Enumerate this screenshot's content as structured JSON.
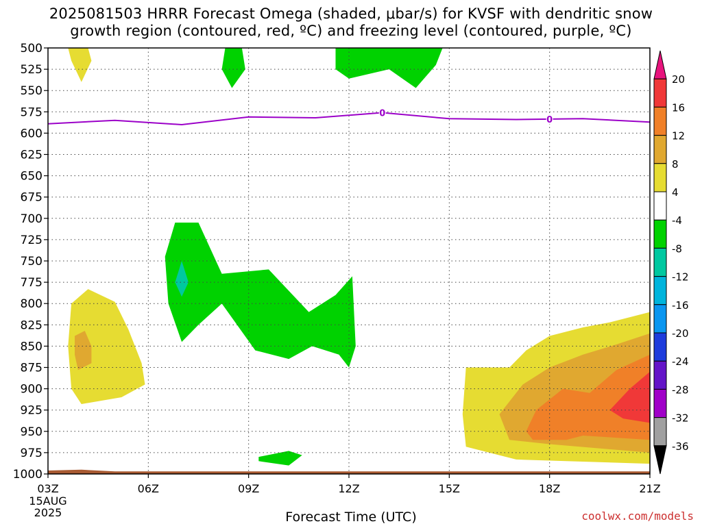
{
  "chart_data": {
    "type": "heatmap",
    "title_line1": "2025081503 HRRR Forecast Omega (shaded, μbar/s) for KVSF with dendritic snow",
    "title_line2": "growth region (contoured, red, ºC) and freezing level (contoured, purple, ºC)",
    "xlabel": "Forecast Time (UTC)",
    "x_ticks": [
      "03Z",
      "06Z",
      "09Z",
      "12Z",
      "15Z",
      "18Z",
      "21Z"
    ],
    "x_tick_hours": [
      3,
      6,
      9,
      12,
      15,
      18,
      21
    ],
    "x_date_label": [
      "15AUG",
      "2025"
    ],
    "xlim": [
      3,
      21
    ],
    "y_ticks": [
      500,
      525,
      550,
      575,
      600,
      625,
      650,
      675,
      700,
      725,
      750,
      775,
      800,
      825,
      850,
      875,
      900,
      925,
      950,
      975,
      1000
    ],
    "ylim": [
      1000,
      500
    ],
    "grid": true,
    "colorbar": {
      "labels": [
        "20",
        "16",
        "12",
        "8",
        "4",
        "-4",
        "-8",
        "-12",
        "-16",
        "-20",
        "-24",
        "-28",
        "-32",
        "-36"
      ],
      "colors": [
        "#e8147d",
        "#f03838",
        "#f08028",
        "#e0a830",
        "#e6dc32",
        "#ffffff",
        "#00d200",
        "#00c8a0",
        "#00b4dc",
        "#0a96f0",
        "#1e3cdc",
        "#6414c8",
        "#a000c8",
        "#a0a0a0",
        "#000000"
      ]
    },
    "freezing_level": {
      "color": "#9b00c8",
      "label": "0",
      "label_hours": [
        13,
        18
      ],
      "hours": [
        3,
        5,
        7,
        9,
        11,
        13,
        15,
        17,
        19,
        21
      ],
      "pressure": [
        589,
        585,
        590,
        581,
        582,
        576,
        583,
        584,
        583,
        587
      ]
    },
    "omega_regions": [
      {
        "color": "#e6dc32",
        "points": [
          [
            3.6,
            500
          ],
          [
            4.2,
            500
          ],
          [
            4.3,
            515
          ],
          [
            4.0,
            540
          ],
          [
            3.7,
            515
          ]
        ]
      },
      {
        "color": "#00d200",
        "points": [
          [
            8.3,
            500
          ],
          [
            8.8,
            500
          ],
          [
            8.9,
            525
          ],
          [
            8.5,
            547
          ],
          [
            8.2,
            525
          ]
        ]
      },
      {
        "color": "#00d200",
        "points": [
          [
            11.6,
            500
          ],
          [
            14.8,
            500
          ],
          [
            14.6,
            520
          ],
          [
            14.0,
            547
          ],
          [
            13.2,
            525
          ],
          [
            12.0,
            536
          ],
          [
            11.6,
            525
          ]
        ]
      },
      {
        "color": "#00d200",
        "points": [
          [
            6.8,
            705
          ],
          [
            7.5,
            705
          ],
          [
            8.2,
            765
          ],
          [
            9.6,
            760
          ],
          [
            10.8,
            810
          ],
          [
            11.6,
            790
          ],
          [
            12.1,
            768
          ],
          [
            12.2,
            850
          ],
          [
            12.0,
            875
          ],
          [
            11.7,
            860
          ],
          [
            10.9,
            850
          ],
          [
            10.2,
            865
          ],
          [
            9.2,
            855
          ],
          [
            8.2,
            800
          ],
          [
            7.5,
            825
          ],
          [
            7.0,
            845
          ],
          [
            6.6,
            800
          ],
          [
            6.5,
            745
          ]
        ]
      },
      {
        "color": "#00c8a0",
        "points": [
          [
            7.0,
            750
          ],
          [
            7.2,
            775
          ],
          [
            7.0,
            792
          ],
          [
            6.8,
            775
          ]
        ]
      },
      {
        "color": "#e6dc32",
        "points": [
          [
            3.7,
            800
          ],
          [
            4.2,
            783
          ],
          [
            5.0,
            798
          ],
          [
            5.4,
            830
          ],
          [
            5.8,
            870
          ],
          [
            5.9,
            895
          ],
          [
            5.2,
            910
          ],
          [
            4.0,
            918
          ],
          [
            3.7,
            900
          ],
          [
            3.6,
            850
          ]
        ]
      },
      {
        "color": "#e0a830",
        "points": [
          [
            3.8,
            838
          ],
          [
            4.1,
            832
          ],
          [
            4.3,
            850
          ],
          [
            4.3,
            870
          ],
          [
            3.9,
            878
          ],
          [
            3.8,
            860
          ]
        ]
      },
      {
        "color": "#00d200",
        "points": [
          [
            9.3,
            980
          ],
          [
            10.2,
            973
          ],
          [
            10.6,
            978
          ],
          [
            10.2,
            990
          ],
          [
            9.3,
            985
          ]
        ]
      },
      {
        "color": "#e6dc32",
        "points": [
          [
            15.5,
            875
          ],
          [
            16.8,
            875
          ],
          [
            17.3,
            855
          ],
          [
            18.0,
            838
          ],
          [
            19.0,
            828
          ],
          [
            19.8,
            822
          ],
          [
            21,
            810
          ],
          [
            21,
            988
          ],
          [
            17.0,
            983
          ],
          [
            15.5,
            968
          ],
          [
            15.4,
            930
          ]
        ]
      },
      {
        "color": "#e0a830",
        "points": [
          [
            16.5,
            930
          ],
          [
            17.2,
            895
          ],
          [
            18.0,
            875
          ],
          [
            19.0,
            860
          ],
          [
            20.0,
            848
          ],
          [
            21,
            835
          ],
          [
            21,
            975
          ],
          [
            18.0,
            965
          ],
          [
            16.8,
            960
          ]
        ]
      },
      {
        "color": "#f08028",
        "points": [
          [
            17.3,
            950
          ],
          [
            17.6,
            925
          ],
          [
            18.4,
            900
          ],
          [
            19.2,
            905
          ],
          [
            20.0,
            878
          ],
          [
            21,
            860
          ],
          [
            21,
            960
          ],
          [
            19.0,
            955
          ],
          [
            18.5,
            960
          ],
          [
            17.5,
            960
          ]
        ]
      },
      {
        "color": "#f03838",
        "points": [
          [
            19.8,
            925
          ],
          [
            20.4,
            900
          ],
          [
            21,
            880
          ],
          [
            21,
            940
          ],
          [
            20.2,
            935
          ]
        ]
      }
    ],
    "terrain": {
      "color": "#a85a32",
      "points": [
        [
          3,
          996
        ],
        [
          4,
          995
        ],
        [
          5,
          997
        ],
        [
          21,
          997
        ],
        [
          21,
          1000
        ],
        [
          3,
          1000
        ]
      ]
    }
  },
  "watermark": "coolwx.com/models"
}
